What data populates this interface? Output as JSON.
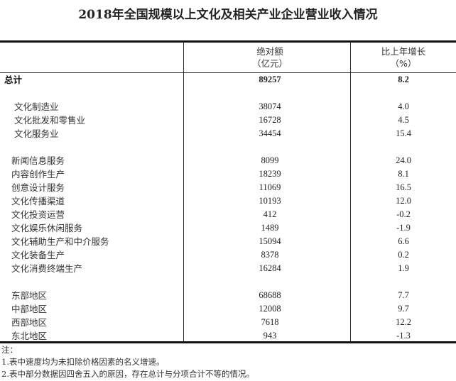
{
  "title": "2018年全国规模以上文化及相关产业企业营业收入情况",
  "header": {
    "col1_line1": "绝对额",
    "col1_line2": "（亿元）",
    "col2_line1": "比上年增长",
    "col2_line2": "（%）"
  },
  "rows": [
    {
      "label": "总计",
      "value": "89257",
      "growth": "8.2",
      "bold": true
    },
    {
      "blank": true
    },
    {
      "label": "文化制造业",
      "value": "38074",
      "growth": "4.0",
      "indent": true
    },
    {
      "label": "文化批发和零售业",
      "value": "16728",
      "growth": "4.5",
      "indent": true
    },
    {
      "label": "文化服务业",
      "value": "34454",
      "growth": "15.4",
      "indent": true
    },
    {
      "blank": true
    },
    {
      "label": "新闻信息服务",
      "value": "8099",
      "growth": "24.0"
    },
    {
      "label": "内容创作生产",
      "value": "18239",
      "growth": "8.1"
    },
    {
      "label": "创意设计服务",
      "value": "11069",
      "growth": "16.5"
    },
    {
      "label": "文化传播渠道",
      "value": "10193",
      "growth": "12.0"
    },
    {
      "label": "文化投资运营",
      "value": "412",
      "growth": "-0.2"
    },
    {
      "label": "文化娱乐休闲服务",
      "value": "1489",
      "growth": "-1.9"
    },
    {
      "label": "文化辅助生产和中介服务",
      "value": "15094",
      "growth": "6.6"
    },
    {
      "label": "文化装备生产",
      "value": "8378",
      "growth": "0.2"
    },
    {
      "label": "文化消费终端生产",
      "value": "16284",
      "growth": "1.9"
    },
    {
      "blank": true
    },
    {
      "label": "东部地区",
      "value": "68688",
      "growth": "7.7"
    },
    {
      "label": "中部地区",
      "value": "12008",
      "growth": "9.7"
    },
    {
      "label": "西部地区",
      "value": "7618",
      "growth": "12.2"
    },
    {
      "label": "东北地区",
      "value": "943",
      "growth": "-1.3"
    }
  ],
  "notes": {
    "heading": "注：",
    "items": [
      "1.表中速度均为未扣除价格因素的名义增速。",
      "2.表中部分数据因四舍五入的原因，存在总计与分项合计不等的情况。"
    ]
  }
}
